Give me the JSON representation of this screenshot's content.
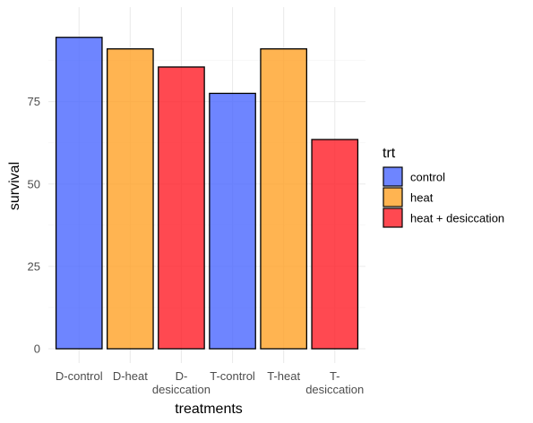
{
  "chart_data": {
    "type": "bar",
    "categories": [
      "D-control",
      "D-heat",
      "D-desiccation",
      "T-control",
      "T-heat",
      "T-desiccation"
    ],
    "category_tick_labels": [
      [
        "D-control"
      ],
      [
        "D-heat"
      ],
      [
        "D-",
        "desiccation"
      ],
      [
        "T-control"
      ],
      [
        "T-heat"
      ],
      [
        "T-",
        "desiccation"
      ]
    ],
    "values": [
      94.5,
      91,
      85.5,
      77.5,
      91,
      63.5
    ],
    "groups": [
      "control",
      "heat",
      "heat + desiccation",
      "control",
      "heat",
      "heat + desiccation"
    ],
    "xlabel": "treatments",
    "ylabel": "survival",
    "ylim": [
      0,
      100
    ],
    "y_ticks": [
      0,
      25,
      50,
      75
    ],
    "grid": true,
    "legend": {
      "title": "trt",
      "position": "right",
      "entries": [
        {
          "label": "control",
          "color": "#4a66ff"
        },
        {
          "label": "heat",
          "color": "#ffa126"
        },
        {
          "label": "heat + desiccation",
          "color": "#ff1c26"
        }
      ]
    },
    "bar_opacity": 0.8
  }
}
